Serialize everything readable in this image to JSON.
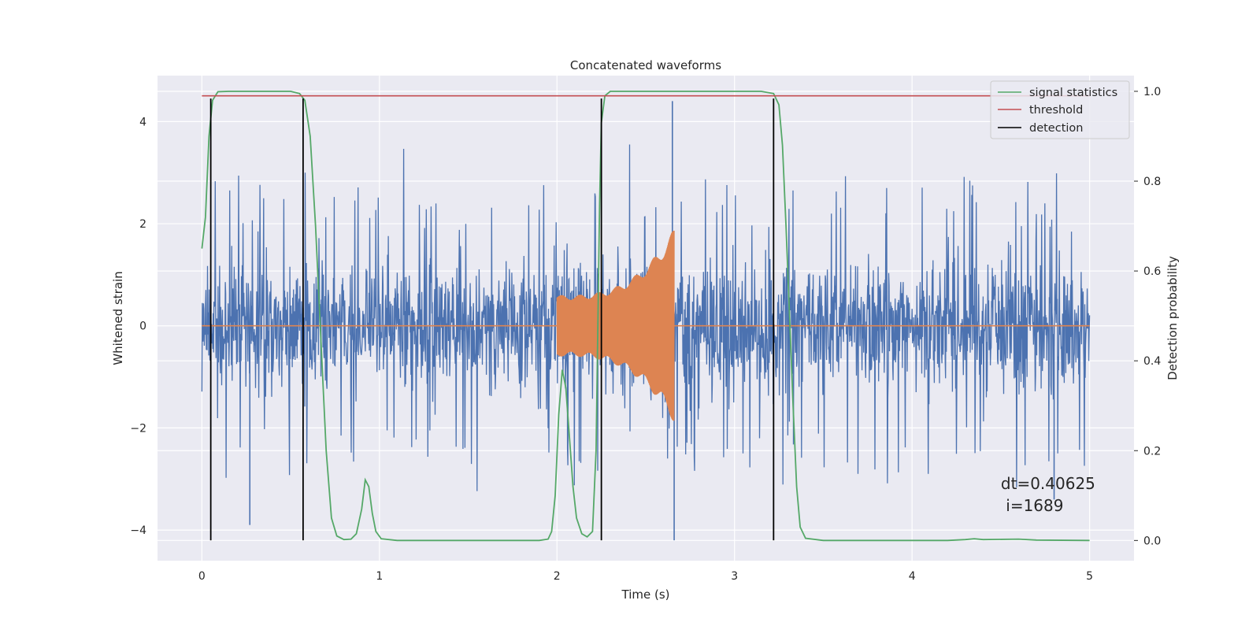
{
  "chart_data": {
    "type": "line",
    "title": "Concatenated waveforms",
    "xlabel": "Time (s)",
    "ylabel": "Whitened strain",
    "ylabel_right": "Detection probability",
    "xlim": [
      -0.25,
      5.25
    ],
    "ylim": [
      -4.6,
      4.9
    ],
    "ylim_right": [
      -0.045,
      1.035
    ],
    "x_ticks": [
      0,
      1,
      2,
      3,
      4,
      5
    ],
    "y_ticks": [
      -4,
      -2,
      0,
      2,
      4
    ],
    "y_ticks_right": [
      0.0,
      0.2,
      0.4,
      0.6,
      0.8,
      1.0
    ],
    "y_tick_labels": [
      "−4",
      "−2",
      "0",
      "2",
      "4"
    ],
    "y_tick_labels_right": [
      "0.0",
      "0.2",
      "0.4",
      "0.6",
      "0.8",
      "1.0"
    ],
    "x_tick_labels": [
      "0",
      "1",
      "2",
      "3",
      "4",
      "5"
    ],
    "grid": true,
    "legend_position": "top-right",
    "annotation": {
      "line1": "dt=0.40625",
      "line2": " i=1689",
      "x": 4.5,
      "y": -3.2
    },
    "series": [
      {
        "name": "",
        "color": "#4c72b0",
        "kind": "noise",
        "description_x_range": [
          0,
          5
        ],
        "amplitude_envelope": 2.2,
        "spikes": [
          {
            "x": 0.27,
            "y": -3.9
          },
          {
            "x": 2.65,
            "y": 4.4
          },
          {
            "x": 2.66,
            "y": -4.2
          },
          {
            "x": 4.8,
            "y": -3.4
          }
        ]
      },
      {
        "name": "",
        "color": "#dd8452",
        "kind": "chirp",
        "x_start": 2.0,
        "x_end": 2.66,
        "amp_start": 0.6,
        "amp_end": 1.9,
        "baseline": [
          [
            0,
            0
          ],
          [
            5,
            0
          ]
        ]
      },
      {
        "name": "signal statistics",
        "color": "#55a868",
        "axis": "right",
        "points": [
          [
            0.0,
            0.65
          ],
          [
            0.02,
            0.72
          ],
          [
            0.04,
            0.9
          ],
          [
            0.06,
            0.98
          ],
          [
            0.09,
            0.999
          ],
          [
            0.15,
            1.0
          ],
          [
            0.5,
            1.0
          ],
          [
            0.55,
            0.995
          ],
          [
            0.58,
            0.98
          ],
          [
            0.61,
            0.9
          ],
          [
            0.64,
            0.7
          ],
          [
            0.67,
            0.45
          ],
          [
            0.7,
            0.2
          ],
          [
            0.73,
            0.05
          ],
          [
            0.76,
            0.01
          ],
          [
            0.8,
            0.002
          ],
          [
            0.84,
            0.003
          ],
          [
            0.87,
            0.015
          ],
          [
            0.9,
            0.07
          ],
          [
            0.92,
            0.135
          ],
          [
            0.94,
            0.12
          ],
          [
            0.96,
            0.06
          ],
          [
            0.98,
            0.02
          ],
          [
            1.01,
            0.004
          ],
          [
            1.1,
            0.0
          ],
          [
            1.5,
            0.0
          ],
          [
            1.9,
            0.0
          ],
          [
            1.95,
            0.003
          ],
          [
            1.97,
            0.02
          ],
          [
            1.99,
            0.1
          ],
          [
            2.01,
            0.28
          ],
          [
            2.03,
            0.38
          ],
          [
            2.05,
            0.34
          ],
          [
            2.07,
            0.23
          ],
          [
            2.09,
            0.12
          ],
          [
            2.11,
            0.05
          ],
          [
            2.14,
            0.015
          ],
          [
            2.17,
            0.008
          ],
          [
            2.2,
            0.02
          ],
          [
            2.22,
            0.2
          ],
          [
            2.24,
            0.75
          ],
          [
            2.25,
            0.93
          ],
          [
            2.27,
            0.99
          ],
          [
            2.3,
            1.0
          ],
          [
            3.15,
            1.0
          ],
          [
            3.22,
            0.995
          ],
          [
            3.25,
            0.97
          ],
          [
            3.27,
            0.88
          ],
          [
            3.29,
            0.7
          ],
          [
            3.31,
            0.5
          ],
          [
            3.33,
            0.3
          ],
          [
            3.35,
            0.12
          ],
          [
            3.37,
            0.03
          ],
          [
            3.4,
            0.005
          ],
          [
            3.5,
            0.0
          ],
          [
            4.2,
            0.0
          ],
          [
            4.3,
            0.002
          ],
          [
            4.35,
            0.004
          ],
          [
            4.4,
            0.002
          ],
          [
            4.6,
            0.003
          ],
          [
            4.7,
            0.001
          ],
          [
            5.0,
            0.0
          ]
        ]
      },
      {
        "name": "threshold",
        "color": "#c44e52",
        "axis": "right",
        "points": [
          [
            0,
            0.99
          ],
          [
            5,
            0.99
          ]
        ]
      },
      {
        "name": "detection",
        "color": "#000000",
        "kind": "vlines",
        "x": [
          0.05,
          0.57,
          2.25,
          3.22
        ],
        "y_range": [
          -4.2,
          4.45
        ]
      }
    ]
  }
}
